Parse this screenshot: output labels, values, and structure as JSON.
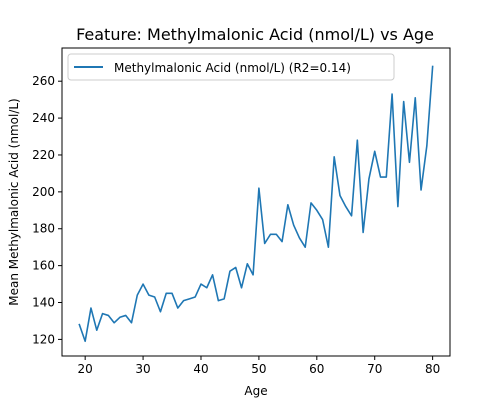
{
  "chart_data": {
    "type": "line",
    "title": "Feature: Methylmalonic Acid (nmol/L) vs Age",
    "xlabel": "Age",
    "ylabel": "Mean Methylmalonic Acid (nmol/L)",
    "xlim": [
      16,
      83
    ],
    "ylim": [
      111,
      278
    ],
    "xticks": [
      20,
      30,
      40,
      50,
      60,
      70,
      80
    ],
    "yticks": [
      120,
      140,
      160,
      180,
      200,
      220,
      240,
      260
    ],
    "grid": false,
    "legend_position": "upper-left",
    "series": [
      {
        "name": "Methylmalonic Acid (nmol/L) (R2=0.14)",
        "color": "#1f77b4",
        "x": [
          19,
          20,
          21,
          22,
          23,
          24,
          25,
          26,
          27,
          28,
          29,
          30,
          31,
          32,
          33,
          34,
          35,
          36,
          37,
          38,
          39,
          40,
          41,
          42,
          43,
          44,
          45,
          46,
          47,
          48,
          49,
          50,
          51,
          52,
          53,
          54,
          55,
          56,
          57,
          58,
          59,
          60,
          61,
          62,
          63,
          64,
          65,
          66,
          67,
          68,
          69,
          70,
          71,
          72,
          73,
          74,
          75,
          76,
          77,
          78,
          79,
          80
        ],
        "values": [
          128,
          119,
          137,
          125,
          134,
          133,
          129,
          132,
          133,
          129,
          144,
          150,
          144,
          143,
          135,
          145,
          145,
          137,
          141,
          142,
          143,
          150,
          148,
          155,
          141,
          142,
          157,
          159,
          148,
          161,
          155,
          202,
          172,
          177,
          177,
          173,
          193,
          182,
          175,
          170,
          194,
          190,
          185,
          170,
          219,
          198,
          192,
          187,
          228,
          178,
          207,
          222,
          208,
          208,
          253,
          192,
          249,
          216,
          251,
          201,
          225,
          268
        ]
      }
    ]
  }
}
